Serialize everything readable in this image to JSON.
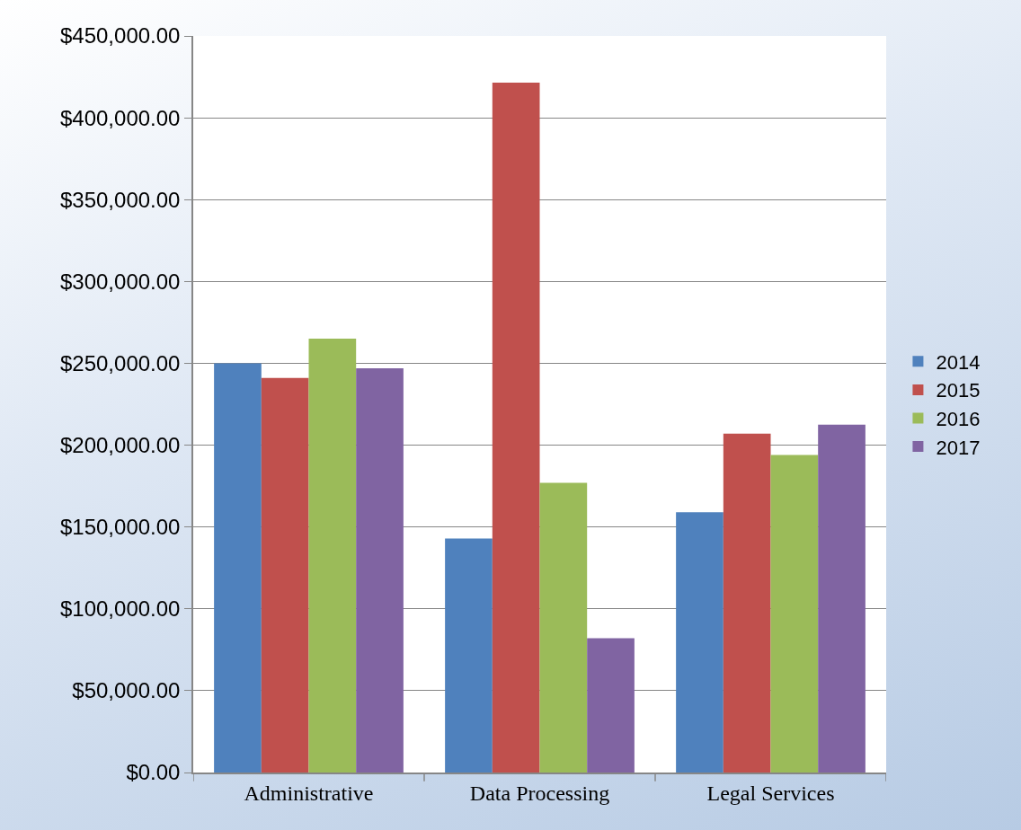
{
  "chart_data": {
    "type": "bar",
    "categories": [
      "Administrative",
      "Data Processing",
      "Legal Services"
    ],
    "series": [
      {
        "name": "2014",
        "color": "#4f81bd",
        "values": [
          250000,
          143000,
          159000
        ]
      },
      {
        "name": "2015",
        "color": "#c0504d",
        "values": [
          241000,
          421500,
          207000
        ]
      },
      {
        "name": "2016",
        "color": "#9bbb59",
        "values": [
          265000,
          177000,
          194000
        ]
      },
      {
        "name": "2017",
        "color": "#8064a2",
        "values": [
          247000,
          82000,
          212500
        ]
      }
    ],
    "ylim": [
      0,
      450000
    ],
    "yticks": [
      {
        "value": 0,
        "label": "$0.00"
      },
      {
        "value": 50000,
        "label": "$50,000.00"
      },
      {
        "value": 100000,
        "label": "$100,000.00"
      },
      {
        "value": 150000,
        "label": "$150,000.00"
      },
      {
        "value": 200000,
        "label": "$200,000.00"
      },
      {
        "value": 250000,
        "label": "$250,000.00"
      },
      {
        "value": 300000,
        "label": "$300,000.00"
      },
      {
        "value": 350000,
        "label": "$350,000.00"
      },
      {
        "value": 400000,
        "label": "$400,000.00"
      },
      {
        "value": 450000,
        "label": "$450,000.00"
      }
    ],
    "grid": "y",
    "legend": "right"
  }
}
